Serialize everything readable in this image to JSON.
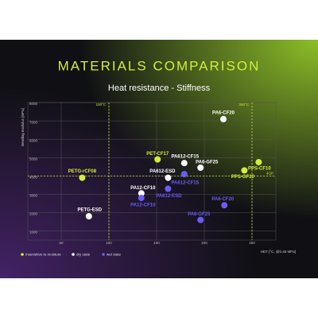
{
  "chart_data": {
    "type": "scatter",
    "title": "MATERIALS COMPARISON",
    "subtitle": "Heat resistance - Stiffness",
    "x_label": "HDT [°C, @0.45 MPa]",
    "y_label": "Bending modulus [MPa]",
    "xlim": [
      15,
      275
    ],
    "ylim": [
      500,
      8000
    ],
    "xticks": [
      50,
      100,
      150,
      200,
      250
    ],
    "yticks": [
      1000,
      2000,
      3000,
      4000,
      5000,
      6000,
      7000,
      8000
    ],
    "grid": true,
    "reference_lines": [
      {
        "axis": "x",
        "value": 100,
        "label": "100°C",
        "color": "#c8e632"
      },
      {
        "axis": "x",
        "value": 250,
        "label": "250°C",
        "color": "#c8e632"
      },
      {
        "axis": "y",
        "value": 4000,
        "label": "4GP",
        "color": "#c8e632"
      }
    ],
    "series": [
      {
        "name": "Insensitive to moisture",
        "color": "#d2ee3a",
        "labels": [
          "PET-CF17",
          "PPS-CF10",
          "PPS-GF20",
          "PETG-rCF08"
        ],
        "x": [
          151,
          257,
          242,
          72
        ],
        "y": [
          4900,
          4750,
          4300,
          3900
        ]
      },
      {
        "name": "dry state",
        "color": "#ffffff",
        "labels": [
          "PA6-CF20",
          "PA612-CF15",
          "PA6-GF25",
          "PA612-ESD",
          "PA12-CF10",
          "PETG-ESD"
        ],
        "x": [
          220,
          179,
          196,
          162,
          134,
          79
        ],
        "y": [
          7100,
          4700,
          4450,
          3900,
          3050,
          1800
        ]
      },
      {
        "name": "wet state",
        "color": "#6b5cf5",
        "labels": [
          "PA612-CF15",
          "PA612-ESD",
          "PA12-CF10",
          "PA6-CF20",
          "PA6-GF25"
        ],
        "x": [
          179,
          162,
          134,
          221,
          196
        ],
        "y": [
          4100,
          3300,
          2800,
          2400,
          1600
        ]
      }
    ]
  }
}
